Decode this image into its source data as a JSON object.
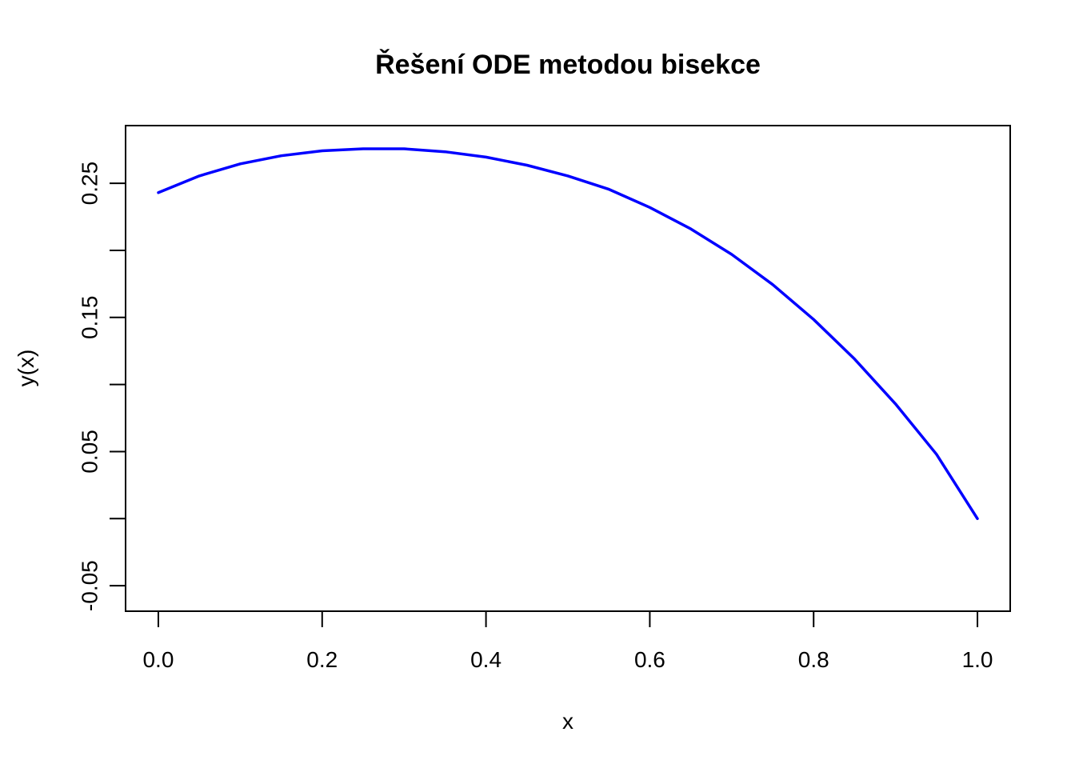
{
  "chart_data": {
    "type": "line",
    "title": "Řešení ODE metodou bisekce",
    "xlabel": "x",
    "ylabel": "y(x)",
    "xlim": [
      -0.04,
      1.04
    ],
    "ylim": [
      -0.069,
      0.293
    ],
    "x_ticks": [
      0.0,
      0.2,
      0.4,
      0.6,
      0.8,
      1.0
    ],
    "x_tick_labels": [
      "0.0",
      "0.2",
      "0.4",
      "0.6",
      "0.8",
      "1.0"
    ],
    "y_ticks": [
      -0.05,
      0.0,
      0.05,
      0.1,
      0.15,
      0.2,
      0.25
    ],
    "y_tick_labels": [
      "-0.05",
      "",
      "0.05",
      "",
      "0.15",
      "",
      "0.25"
    ],
    "grid": false,
    "series": [
      {
        "name": "y(x)",
        "color": "#0000ff",
        "x": [
          0.0,
          0.05,
          0.1,
          0.15,
          0.2,
          0.25,
          0.3,
          0.35,
          0.4,
          0.45,
          0.5,
          0.55,
          0.6,
          0.65,
          0.7,
          0.75,
          0.8,
          0.85,
          0.9,
          0.95,
          1.0
        ],
        "y": [
          0.243,
          0.2555,
          0.2645,
          0.2705,
          0.2742,
          0.2757,
          0.2757,
          0.2735,
          0.2695,
          0.2635,
          0.2555,
          0.2455,
          0.232,
          0.216,
          0.197,
          0.1745,
          0.1485,
          0.119,
          0.0855,
          0.048,
          0.0
        ]
      }
    ]
  }
}
